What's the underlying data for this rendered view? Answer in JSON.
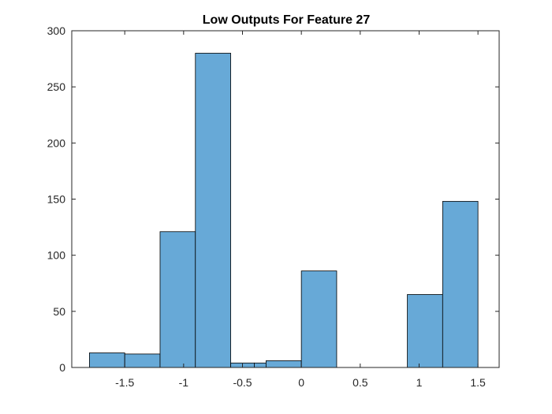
{
  "chart_data": {
    "type": "bar",
    "title": "Low Outputs For Feature 27",
    "xlabel": "",
    "ylabel": "",
    "bin_edges": [
      -1.8,
      -1.5,
      -1.2,
      -0.9,
      -0.6,
      -0.4,
      -0.3,
      0,
      0.3,
      0.6,
      0.9,
      1.2,
      1.5
    ],
    "values": [
      13,
      12,
      121,
      280,
      4,
      4,
      6,
      86,
      0,
      0,
      65,
      148
    ],
    "xlim": [
      -1.95,
      1.68
    ],
    "ylim": [
      0,
      300
    ],
    "xticks": [
      -1.5,
      -1,
      -0.5,
      0,
      0.5,
      1,
      1.5
    ],
    "xtick_labels": [
      "-1.5",
      "-1",
      "-0.5",
      "0",
      "0.5",
      "1",
      "1.5"
    ],
    "yticks": [
      0,
      50,
      100,
      150,
      200,
      250,
      300
    ],
    "ytick_labels": [
      "0",
      "50",
      "100",
      "150",
      "200",
      "250",
      "300"
    ],
    "grid": false,
    "bar_color": "#67a9d7",
    "bar_edge_color": "#000000"
  }
}
